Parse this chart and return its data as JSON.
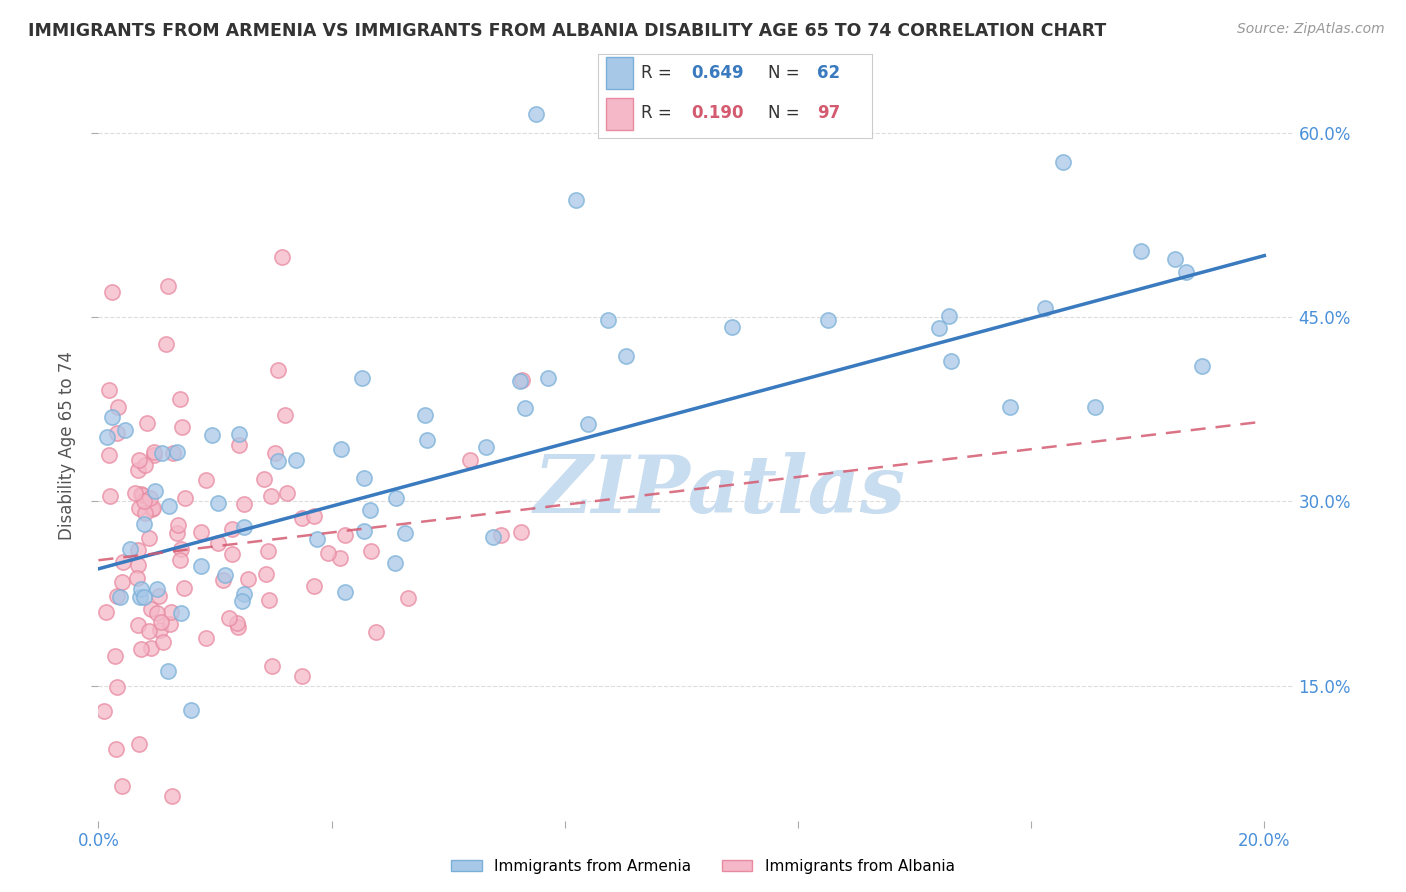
{
  "title": "IMMIGRANTS FROM ARMENIA VS IMMIGRANTS FROM ALBANIA DISABILITY AGE 65 TO 74 CORRELATION CHART",
  "source": "Source: ZipAtlas.com",
  "ylabel": "Disability Age 65 to 74",
  "xlim": [
    0.0,
    0.2
  ],
  "ylim": [
    0.04,
    0.65
  ],
  "armenia_R": 0.649,
  "armenia_N": 62,
  "albania_R": 0.19,
  "albania_N": 97,
  "armenia_color": "#a8c8e8",
  "albania_color": "#f4b8c8",
  "armenia_edge_color": "#7ab0d8",
  "albania_edge_color": "#e88aa0",
  "armenia_line_color": "#3a7abf",
  "albania_line_color": "#d45a70",
  "watermark_color": "#c8ddf0",
  "background_color": "#ffffff",
  "grid_color": "#dddddd",
  "tick_label_color": "#4a90d9",
  "title_color": "#333333",
  "ylabel_color": "#555555",
  "source_color": "#999999",
  "legend_text_color": "#333333",
  "legend_R_color_arm": "#3a7abf",
  "legend_R_color_alb": "#d45a70",
  "legend_N_color_arm": "#3a7abf",
  "legend_N_color_alb": "#d45a70"
}
